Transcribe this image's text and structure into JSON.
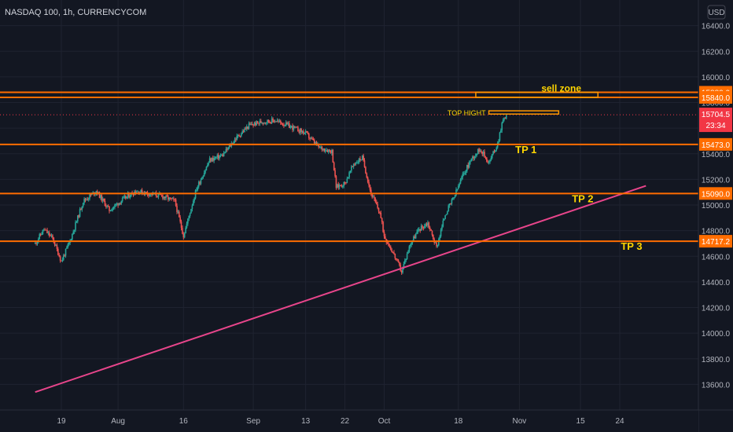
{
  "symbol": "NASDAQ 100, 1h, CURRENCYCOM",
  "currency_button": "USD",
  "countdown": "23:34",
  "colors": {
    "background": "#131722",
    "grid": "#1f2330",
    "up_candle": "#26a69a",
    "down_candle": "#ef5350",
    "level_line": "#ff6d00",
    "trend_line": "#e8458b",
    "annotation_text": "#ffd600",
    "price_badge": "#f23645",
    "level_badge": "#ff6d00"
  },
  "chart_data": {
    "type": "candlestick",
    "ylim": [
      13400,
      16600
    ],
    "y_ticks": [
      13600,
      13800,
      14000,
      14200,
      14400,
      14600,
      14800,
      15000,
      15200,
      15400,
      15600,
      15800,
      16000,
      16200,
      16400
    ],
    "y_tick_labels": [
      "13600.0",
      "13800.0",
      "14000.0",
      "14200.0",
      "14400.0",
      "14600.0",
      "14800.0",
      "15000.0",
      "15200.0",
      "15400.0",
      "15600.0",
      "15800.0",
      "16000.0",
      "16200.0",
      "16400.0"
    ],
    "x_tick_labels": [
      "19",
      "Aug",
      "16",
      "Sep",
      "13",
      "22",
      "Oct",
      "18",
      "Nov",
      "15",
      "24"
    ],
    "price_path": [
      [
        "Jul 13",
        14700
      ],
      [
        "Jul 15",
        14810
      ],
      [
        "Jul 17",
        14740
      ],
      [
        "Jul 19",
        14560
      ],
      [
        "Jul 21",
        14720
      ],
      [
        "Jul 24",
        15030
      ],
      [
        "Jul 27",
        15110
      ],
      [
        "Jul 30",
        14960
      ],
      [
        "Aug 2",
        15040
      ],
      [
        "Aug 5",
        15110
      ],
      [
        "Aug 8",
        15090
      ],
      [
        "Aug 11",
        15070
      ],
      [
        "Aug 14",
        15030
      ],
      [
        "Aug 16",
        14760
      ],
      [
        "Aug 19",
        15130
      ],
      [
        "Aug 22",
        15350
      ],
      [
        "Aug 25",
        15390
      ],
      [
        "Aug 28",
        15520
      ],
      [
        "Aug 31",
        15620
      ],
      [
        "Sep 3",
        15650
      ],
      [
        "Sep 6",
        15660
      ],
      [
        "Sep 9",
        15620
      ],
      [
        "Sep 13",
        15560
      ],
      [
        "Sep 16",
        15450
      ],
      [
        "Sep 19",
        15420
      ],
      [
        "Sep 20",
        15140
      ],
      [
        "Sep 22",
        15170
      ],
      [
        "Sep 24",
        15320
      ],
      [
        "Sep 26",
        15370
      ],
      [
        "Sep 28",
        15090
      ],
      [
        "Sep 30",
        14940
      ],
      [
        "Oct 1",
        14760
      ],
      [
        "Oct 3",
        14630
      ],
      [
        "Oct 5",
        14480
      ],
      [
        "Oct 7",
        14700
      ],
      [
        "Oct 9",
        14810
      ],
      [
        "Oct 11",
        14860
      ],
      [
        "Oct 13",
        14670
      ],
      [
        "Oct 15",
        14930
      ],
      [
        "Oct 17",
        15060
      ],
      [
        "Oct 19",
        15230
      ],
      [
        "Oct 21",
        15360
      ],
      [
        "Oct 23",
        15440
      ],
      [
        "Oct 25",
        15330
      ],
      [
        "Oct 27",
        15480
      ],
      [
        "Oct 28",
        15640
      ],
      [
        "Oct 29",
        15704.5
      ]
    ],
    "horizontal_levels": [
      {
        "price": 15880.0,
        "label": "15880.0"
      },
      {
        "price": 15840.0,
        "label": "15840.0"
      },
      {
        "price": 15473.0,
        "label": "15473.0"
      },
      {
        "price": 15090.0,
        "label": "15090.0"
      },
      {
        "price": 14717.2,
        "label": "14717.2"
      }
    ],
    "trend_line": [
      [
        "Jul 13",
        13540
      ],
      [
        "Nov 30",
        15150
      ]
    ],
    "last_price": {
      "value": 15704.5,
      "label": "15704.5"
    },
    "annotations": [
      {
        "text": "sell zone",
        "type": "rectangle",
        "price_range": [
          15840,
          15880
        ],
        "date_range": [
          "Oct 22",
          "Nov 19"
        ]
      },
      {
        "text": "TOP HIGHT",
        "type": "rectangle",
        "price_range": [
          15710,
          15735
        ],
        "date_range": [
          "Oct 25",
          "Nov 10"
        ]
      },
      {
        "text": "TP 1",
        "type": "label",
        "price": 15473.0
      },
      {
        "text": "TP 2",
        "type": "label",
        "price": 15090.0
      },
      {
        "text": "TP 3",
        "type": "label",
        "price": 14717.2
      }
    ],
    "grid": true
  }
}
